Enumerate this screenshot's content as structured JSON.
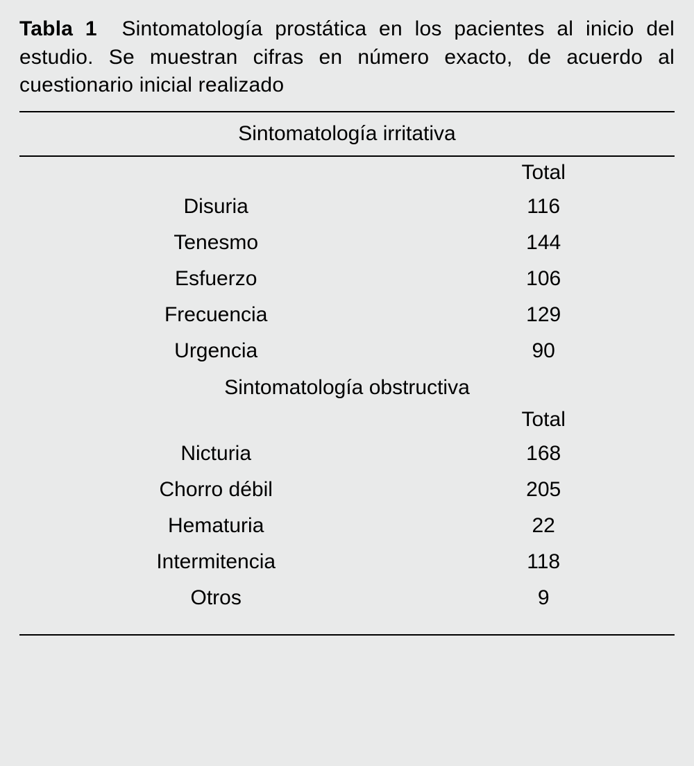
{
  "table": {
    "label": "Tabla 1",
    "caption": "Sintomatología prostática en los pacientes al inicio del estudio. Se muestran cifras en número exacto, de acuerdo al cuestionario inicial realizado",
    "colors": {
      "background": "#e9eaea",
      "rule": "#000000",
      "text": "#000000"
    },
    "font": {
      "family": "Arial",
      "caption_size_pt": 30,
      "body_size_pt": 30,
      "label_weight": "bold"
    },
    "sections": [
      {
        "header": "Sintomatología irritativa",
        "total_label": "Total",
        "rows": [
          {
            "label": "Disuria",
            "value": 116
          },
          {
            "label": "Tenesmo",
            "value": 144
          },
          {
            "label": "Esfuerzo",
            "value": 106
          },
          {
            "label": "Frecuencia",
            "value": 129
          },
          {
            "label": "Urgencia",
            "value": 90
          }
        ]
      },
      {
        "header": "Sintomatología obstructiva",
        "total_label": "Total",
        "rows": [
          {
            "label": "Nicturia",
            "value": 168
          },
          {
            "label": "Chorro débil",
            "value": 205
          },
          {
            "label": "Hematuria",
            "value": 22
          },
          {
            "label": "Intermitencia",
            "value": 118
          },
          {
            "label": "Otros",
            "value": 9
          }
        ]
      }
    ]
  }
}
